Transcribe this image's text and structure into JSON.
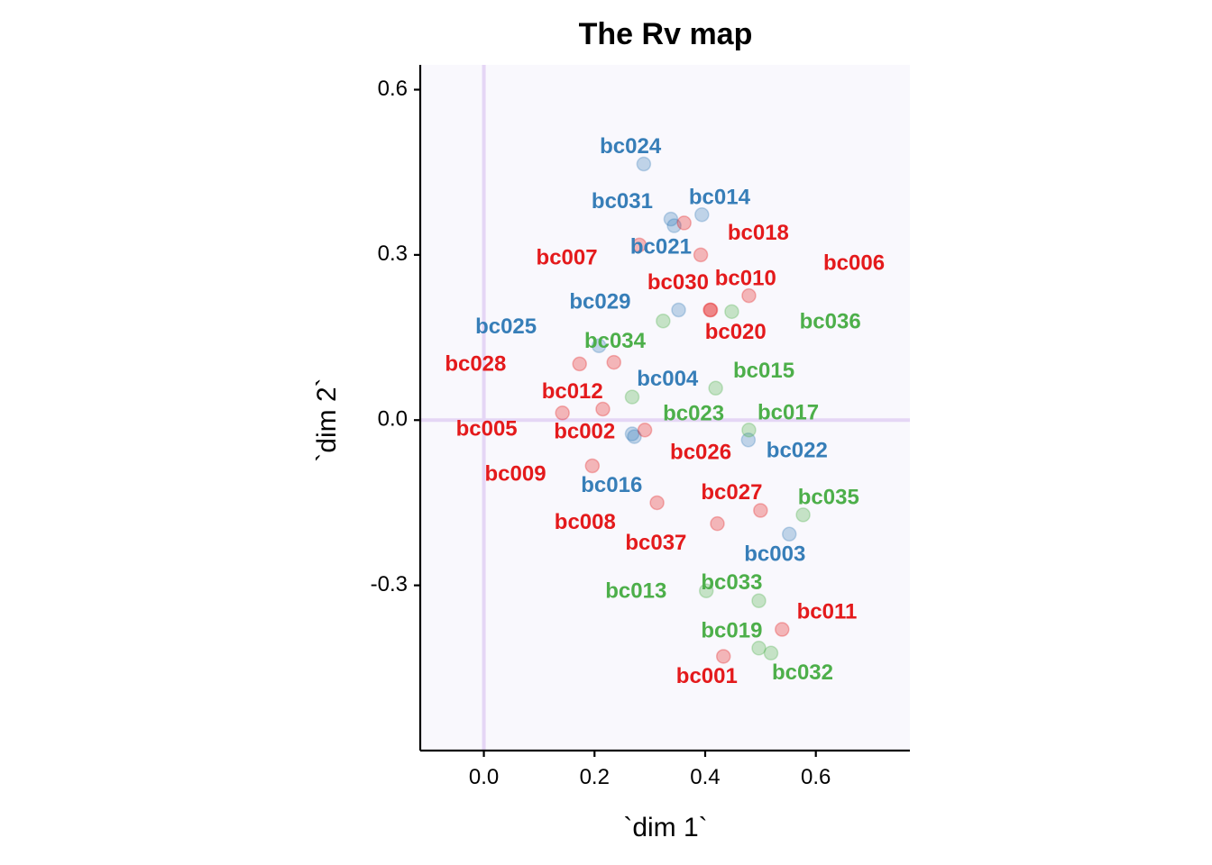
{
  "chart_data": {
    "type": "scatter",
    "title": "The Rv map",
    "xlabel": "`dim 1`",
    "ylabel": "`dim 2`",
    "xlim": [
      -0.115,
      0.77
    ],
    "ylim": [
      -0.6,
      0.645
    ],
    "x_ticks": [
      {
        "value": 0.0,
        "label": "0.0"
      },
      {
        "value": 0.2,
        "label": "0.2"
      },
      {
        "value": 0.4,
        "label": "0.4"
      },
      {
        "value": 0.6,
        "label": "0.6"
      }
    ],
    "y_ticks": [
      {
        "value": 0.6,
        "label": "0.6"
      },
      {
        "value": 0.3,
        "label": "0.3"
      },
      {
        "value": 0.0,
        "label": "0.0"
      },
      {
        "value": -0.3,
        "label": "-0.3"
      }
    ],
    "reference_lines": {
      "x": 0,
      "y": 0,
      "color": "#e5d6f5"
    },
    "panel_background": "#f9f8fd",
    "grid": false,
    "legend": "none",
    "colors": {
      "red": "#e41a1c",
      "blue": "#377eb8",
      "green": "#4daf4a"
    },
    "points": [
      {
        "label": "bc024",
        "group": "blue",
        "x": 0.289,
        "y": 0.465,
        "lx": 0.265,
        "ly": 0.495
      },
      {
        "label": "bc031",
        "group": "blue",
        "x": 0.338,
        "y": 0.365,
        "lx": 0.25,
        "ly": 0.395
      },
      {
        "label": "bc014",
        "group": "blue",
        "x": 0.394,
        "y": 0.373,
        "lx": 0.426,
        "ly": 0.403
      },
      {
        "label": "bc021",
        "group": "blue",
        "x": 0.344,
        "y": 0.353,
        "lx": 0.32,
        "ly": 0.313
      },
      {
        "label": "bc029",
        "group": "blue",
        "x": 0.352,
        "y": 0.2,
        "lx": 0.21,
        "ly": 0.213
      },
      {
        "label": "bc025",
        "group": "blue",
        "x": 0.208,
        "y": 0.135,
        "lx": 0.04,
        "ly": 0.168
      },
      {
        "label": "bc004",
        "group": "blue",
        "x": 0.268,
        "y": -0.025,
        "lx": 0.332,
        "ly": 0.073
      },
      {
        "label": "bc022",
        "group": "blue",
        "x": 0.478,
        "y": -0.036,
        "lx": 0.566,
        "ly": -0.057
      },
      {
        "label": "bc016",
        "group": "blue",
        "x": 0.272,
        "y": -0.03,
        "lx": 0.231,
        "ly": -0.12
      },
      {
        "label": "bc003",
        "group": "blue",
        "x": 0.552,
        "y": -0.207,
        "lx": 0.526,
        "ly": -0.245
      },
      {
        "label": "bc018",
        "group": "red",
        "x": 0.392,
        "y": 0.3,
        "lx": 0.496,
        "ly": 0.338
      },
      {
        "label": "bc007",
        "group": "red",
        "x": 0.281,
        "y": 0.318,
        "lx": 0.15,
        "ly": 0.293
      },
      {
        "label": "bc006",
        "group": "red",
        "x": 0.362,
        "y": 0.358,
        "lx": 0.669,
        "ly": 0.283
      },
      {
        "label": "bc030",
        "group": "red",
        "x": 0.41,
        "y": 0.2,
        "lx": 0.351,
        "ly": 0.248
      },
      {
        "label": "bc010",
        "group": "red",
        "x": 0.479,
        "y": 0.226,
        "lx": 0.473,
        "ly": 0.255
      },
      {
        "label": "bc020",
        "group": "red",
        "x": 0.409,
        "y": 0.2,
        "lx": 0.455,
        "ly": 0.158
      },
      {
        "label": "bc028",
        "group": "red",
        "x": 0.173,
        "y": 0.102,
        "lx": -0.015,
        "ly": 0.1
      },
      {
        "label": "bc012",
        "group": "red",
        "x": 0.235,
        "y": 0.105,
        "lx": 0.16,
        "ly": 0.05
      },
      {
        "label": "bc005",
        "group": "red",
        "x": 0.142,
        "y": 0.013,
        "lx": 0.005,
        "ly": -0.018
      },
      {
        "label": "bc002",
        "group": "red",
        "x": 0.215,
        "y": 0.02,
        "lx": 0.182,
        "ly": -0.023
      },
      {
        "label": "bc026",
        "group": "red",
        "x": 0.291,
        "y": -0.018,
        "lx": 0.392,
        "ly": -0.06
      },
      {
        "label": "bc009",
        "group": "red",
        "x": 0.196,
        "y": -0.083,
        "lx": 0.057,
        "ly": -0.1
      },
      {
        "label": "bc008",
        "group": "red",
        "x": 0.313,
        "y": -0.15,
        "lx": 0.183,
        "ly": -0.187
      },
      {
        "label": "bc027",
        "group": "red",
        "x": 0.5,
        "y": -0.164,
        "lx": 0.448,
        "ly": -0.133
      },
      {
        "label": "bc037",
        "group": "red",
        "x": 0.422,
        "y": -0.188,
        "lx": 0.311,
        "ly": -0.225
      },
      {
        "label": "bc011",
        "group": "red",
        "x": 0.539,
        "y": -0.38,
        "lx": 0.62,
        "ly": -0.35
      },
      {
        "label": "bc001",
        "group": "red",
        "x": 0.433,
        "y": -0.429,
        "lx": 0.403,
        "ly": -0.467
      },
      {
        "label": "bc036",
        "group": "green",
        "x": 0.448,
        "y": 0.197,
        "lx": 0.626,
        "ly": 0.177
      },
      {
        "label": "bc034",
        "group": "green",
        "x": 0.324,
        "y": 0.18,
        "lx": 0.237,
        "ly": 0.142
      },
      {
        "label": "bc015",
        "group": "green",
        "x": 0.419,
        "y": 0.058,
        "lx": 0.506,
        "ly": 0.088
      },
      {
        "label": "bc023",
        "group": "green",
        "x": 0.268,
        "y": 0.042,
        "lx": 0.379,
        "ly": 0.01
      },
      {
        "label": "bc017",
        "group": "green",
        "x": 0.479,
        "y": -0.018,
        "lx": 0.55,
        "ly": 0.012
      },
      {
        "label": "bc035",
        "group": "green",
        "x": 0.577,
        "y": -0.172,
        "lx": 0.623,
        "ly": -0.142
      },
      {
        "label": "bc013",
        "group": "green",
        "x": 0.402,
        "y": -0.31,
        "lx": 0.275,
        "ly": -0.312
      },
      {
        "label": "bc033",
        "group": "green",
        "x": 0.497,
        "y": -0.328,
        "lx": 0.448,
        "ly": -0.297
      },
      {
        "label": "bc019",
        "group": "green",
        "x": 0.497,
        "y": -0.414,
        "lx": 0.448,
        "ly": -0.384
      },
      {
        "label": "bc032",
        "group": "green",
        "x": 0.519,
        "y": -0.423,
        "lx": 0.576,
        "ly": -0.46
      }
    ]
  }
}
